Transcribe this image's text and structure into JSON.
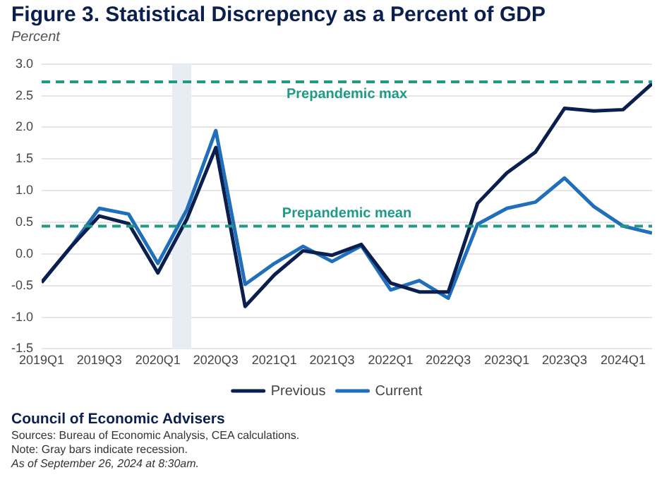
{
  "chart_data": {
    "type": "line",
    "title": "Figure 3. Statistical Discrepency as a Percent of GDP",
    "ylabel": "Percent",
    "x": [
      "2019-01",
      "2019-04",
      "2019-07",
      "2019-10",
      "2020-01",
      "2020-04",
      "2020-07",
      "2020-10",
      "2021-01",
      "2021-04",
      "2021-07",
      "2021-10",
      "2022-01",
      "2022-04",
      "2022-07",
      "2022-10",
      "2023-01",
      "2023-04",
      "2023-07",
      "2023-10",
      "2024-01",
      "2024-04"
    ],
    "xlim": [
      "2019-01",
      "2024-04"
    ],
    "xticks": [
      {
        "value": "2019-01",
        "label": "2019Q1"
      },
      {
        "value": "2019-07",
        "label": "2019Q3"
      },
      {
        "value": "2020-01",
        "label": "2020Q1"
      },
      {
        "value": "2020-07",
        "label": "2020Q3"
      },
      {
        "value": "2021-01",
        "label": "2021Q1"
      },
      {
        "value": "2021-07",
        "label": "2021Q3"
      },
      {
        "value": "2022-01",
        "label": "2022Q1"
      },
      {
        "value": "2022-07",
        "label": "2022Q3"
      },
      {
        "value": "2023-01",
        "label": "2023Q1"
      },
      {
        "value": "2023-07",
        "label": "2023Q3"
      },
      {
        "value": "2024-01",
        "label": "2024Q1"
      }
    ],
    "series": [
      {
        "name": "Previous",
        "color": "#0b1f4f",
        "values": [
          -0.45,
          0.1,
          0.6,
          0.48,
          -0.3,
          0.55,
          1.68,
          -0.83,
          -0.33,
          0.05,
          -0.02,
          0.15,
          -0.46,
          -0.6,
          -0.6,
          0.8,
          1.28,
          1.61,
          2.3,
          2.26,
          2.28,
          2.69
        ]
      },
      {
        "name": "Current",
        "color": "#1f6fba",
        "values": [
          -0.45,
          0.1,
          0.72,
          0.63,
          -0.15,
          0.7,
          1.95,
          -0.48,
          -0.15,
          0.12,
          -0.12,
          0.13,
          -0.57,
          -0.42,
          -0.7,
          0.47,
          0.72,
          0.82,
          1.2,
          0.75,
          0.44,
          0.33
        ]
      }
    ],
    "ylim": [
      -1.5,
      3.0
    ],
    "yticks": [
      -1.5,
      {
        "value": -1,
        "label": "-1.0"
      },
      -0.5,
      {
        "value": 0,
        "label": "0.0"
      },
      0.5,
      {
        "value": 1,
        "label": "1.0"
      },
      1.5,
      {
        "value": 2,
        "label": "2.0"
      },
      2.5,
      {
        "value": 3,
        "label": "3.0"
      }
    ],
    "grid": "y",
    "legend": "bottom",
    "marker": "none",
    "line_style": "solid",
    "ref_lines": [
      {
        "axis": "y",
        "value": 2.72,
        "label": "Prepandemic max",
        "color": "#1f9a86",
        "line_style": "dashed"
      },
      {
        "axis": "y",
        "value": 0.44,
        "label": "Prepandemic mean",
        "color": "#1f9a86",
        "line_style": "dashed"
      }
    ],
    "bands": [
      {
        "axis": "x",
        "from": "2020-02-15",
        "to": "2020-04-15",
        "color": "#e8edf4"
      }
    ],
    "annotations": [
      "Council of Economic Advisers",
      "Sources: Bureau of Economic Analysis, CEA calculations.",
      "Note: Gray bars indicate recession.",
      "As of September 26, 2024 at 8:30am."
    ]
  }
}
